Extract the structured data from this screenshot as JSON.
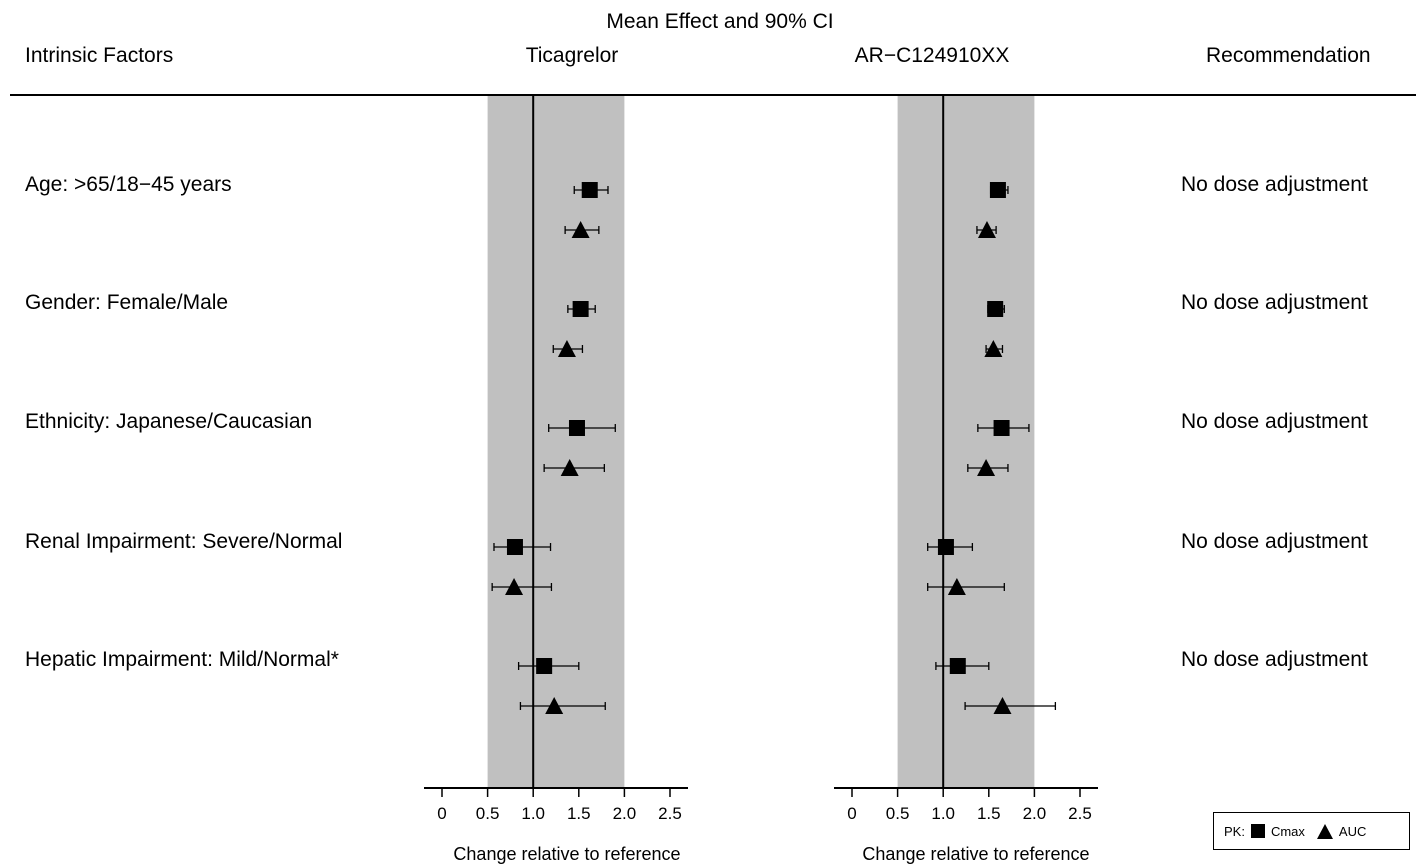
{
  "header": {
    "super_title": "Mean Effect and 90% CI",
    "col_factors": "Intrinsic Factors",
    "col_recommendation": "Recommendation"
  },
  "chart_data": {
    "type": "scatter",
    "subtype": "forest_plot",
    "panels": [
      {
        "title": "Ticagrelor",
        "xlabel": "Change relative to reference",
        "xlim": [
          0,
          2.5
        ],
        "xticks": [
          "0",
          "0.5",
          "1.0",
          "1.5",
          "2.0",
          "2.5"
        ],
        "shaded_region": [
          0.5,
          2.0
        ],
        "reference_line": 1.0,
        "rows": [
          {
            "cmax": {
              "mean": 1.62,
              "lo": 1.45,
              "hi": 1.82
            },
            "auc": {
              "mean": 1.52,
              "lo": 1.35,
              "hi": 1.72
            }
          },
          {
            "cmax": {
              "mean": 1.52,
              "lo": 1.38,
              "hi": 1.68
            },
            "auc": {
              "mean": 1.37,
              "lo": 1.22,
              "hi": 1.54
            }
          },
          {
            "cmax": {
              "mean": 1.48,
              "lo": 1.17,
              "hi": 1.9
            },
            "auc": {
              "mean": 1.4,
              "lo": 1.12,
              "hi": 1.78
            }
          },
          {
            "cmax": {
              "mean": 0.8,
              "lo": 0.57,
              "hi": 1.19
            },
            "auc": {
              "mean": 0.79,
              "lo": 0.55,
              "hi": 1.2
            }
          },
          {
            "cmax": {
              "mean": 1.12,
              "lo": 0.84,
              "hi": 1.5
            },
            "auc": {
              "mean": 1.23,
              "lo": 0.86,
              "hi": 1.79
            }
          }
        ]
      },
      {
        "title": "AR−C124910XX",
        "xlabel": "Change relative to reference",
        "xlim": [
          0,
          2.5
        ],
        "xticks": [
          "0",
          "0.5",
          "1.0",
          "1.5",
          "2.0",
          "2.5"
        ],
        "shaded_region": [
          0.5,
          2.0
        ],
        "reference_line": 1.0,
        "rows": [
          {
            "cmax": {
              "mean": 1.6,
              "lo": 1.52,
              "hi": 1.71
            },
            "auc": {
              "mean": 1.48,
              "lo": 1.37,
              "hi": 1.58
            }
          },
          {
            "cmax": {
              "mean": 1.57,
              "lo": 1.49,
              "hi": 1.67
            },
            "auc": {
              "mean": 1.55,
              "lo": 1.47,
              "hi": 1.65
            }
          },
          {
            "cmax": {
              "mean": 1.64,
              "lo": 1.38,
              "hi": 1.94
            },
            "auc": {
              "mean": 1.47,
              "lo": 1.27,
              "hi": 1.71
            }
          },
          {
            "cmax": {
              "mean": 1.03,
              "lo": 0.83,
              "hi": 1.32
            },
            "auc": {
              "mean": 1.15,
              "lo": 0.83,
              "hi": 1.67
            }
          },
          {
            "cmax": {
              "mean": 1.16,
              "lo": 0.92,
              "hi": 1.5
            },
            "auc": {
              "mean": 1.65,
              "lo": 1.24,
              "hi": 2.23
            }
          }
        ]
      }
    ],
    "factors": [
      "Age: >65/18−45 years",
      "Gender: Female/Male",
      "Ethnicity: Japanese/Caucasian",
      "Renal Impairment: Severe/Normal",
      "Hepatic Impairment: Mild/Normal*"
    ],
    "recommendations": [
      "No dose adjustment",
      "No dose adjustment",
      "No dose adjustment",
      "No dose adjustment",
      "No dose adjustment"
    ],
    "legend": {
      "prefix": "PK:",
      "items": [
        {
          "name": "Cmax",
          "marker": "square"
        },
        {
          "name": "AUC",
          "marker": "triangle"
        }
      ],
      "placement": "bottom-right"
    },
    "colors": {
      "shade": "#c0c0c0",
      "marker": "#000000"
    }
  }
}
